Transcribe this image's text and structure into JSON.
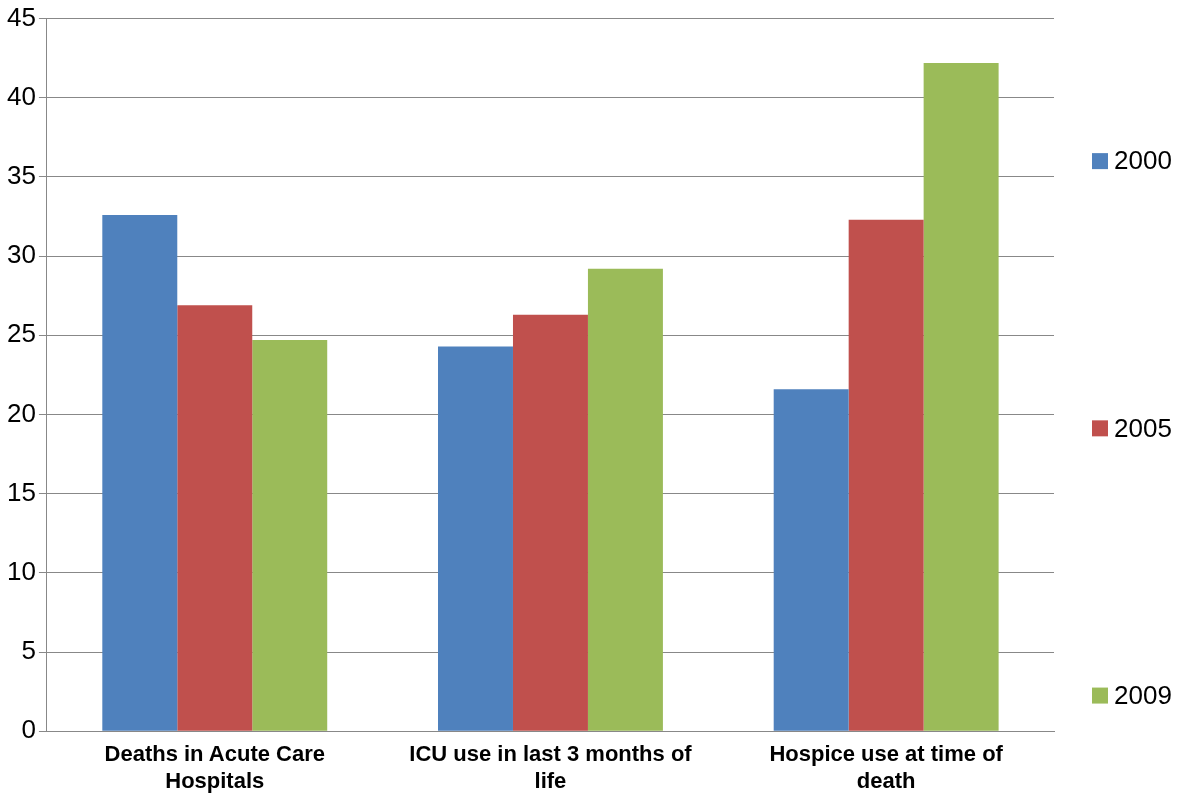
{
  "chart_data": {
    "type": "bar",
    "categories": [
      "Deaths in Acute Care Hospitals",
      "ICU use in last 3 months of life",
      "Hospice use at time of death"
    ],
    "series": [
      {
        "name": "2000",
        "color": "#4f81bd",
        "values": [
          32.6,
          24.3,
          21.6
        ]
      },
      {
        "name": "2005",
        "color": "#c0504d",
        "values": [
          26.9,
          26.3,
          32.3
        ]
      },
      {
        "name": "2009",
        "color": "#9bbb59",
        "values": [
          24.7,
          29.2,
          42.2
        ]
      }
    ],
    "ylim": [
      0,
      45
    ],
    "yticks": [
      0,
      5,
      10,
      15,
      20,
      25,
      30,
      35,
      40,
      45
    ],
    "grid": "y",
    "legend": "right"
  }
}
